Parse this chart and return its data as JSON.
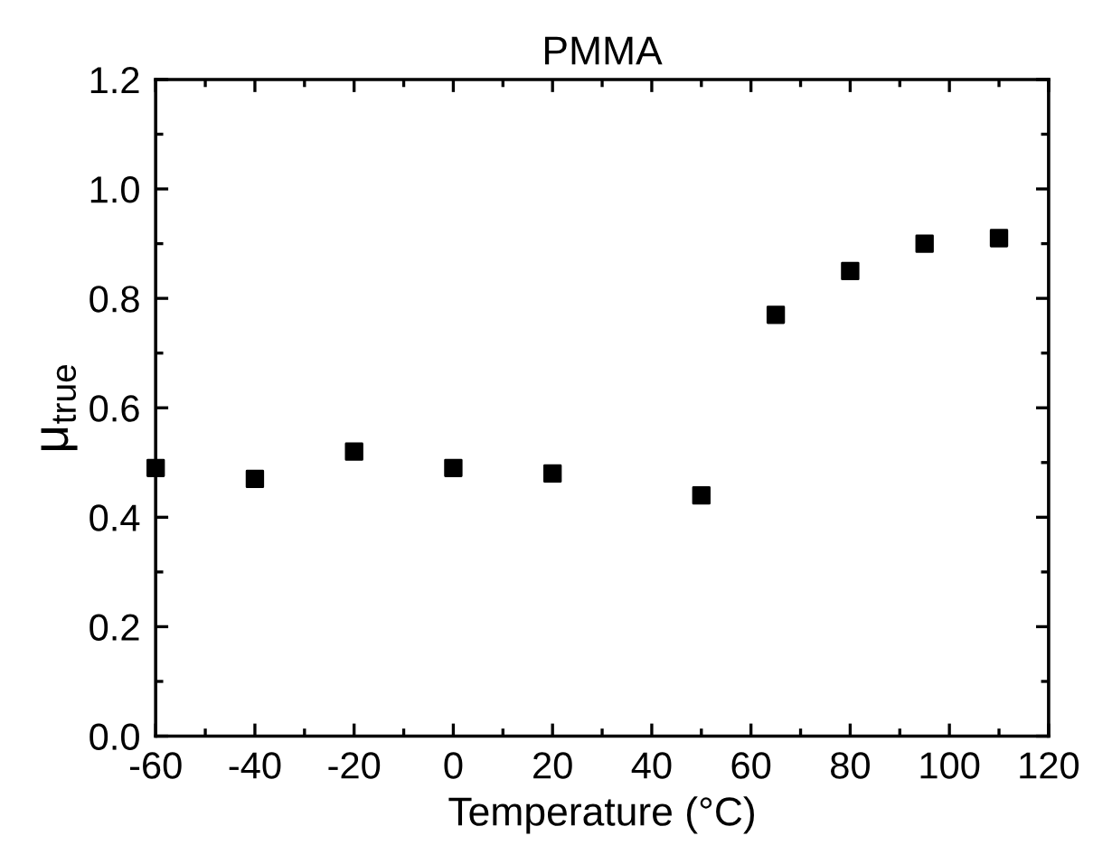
{
  "chart_data": {
    "type": "scatter",
    "title": "PMMA",
    "xlabel": "Temperature (°C)",
    "ylabel": "μ$_{true}$",
    "x": [
      -60,
      -40,
      -20,
      0,
      20,
      50,
      65,
      80,
      95,
      110
    ],
    "series": [
      {
        "color": "#000000",
        "values": [
          0.49,
          0.47,
          0.52,
          0.49,
          0.48,
          0.44,
          0.77,
          0.85,
          0.9,
          0.91
        ]
      }
    ],
    "marker": "square",
    "grid": false,
    "xlim": [
      -60,
      120
    ],
    "xticks": [
      -60,
      -40,
      -20,
      0,
      20,
      40,
      60,
      80,
      100,
      120
    ],
    "ylim": [
      0.0,
      1.2
    ],
    "yticks": [
      {
        "value": 0.0,
        "label": "0.0"
      },
      {
        "value": 0.2,
        "label": "0.2"
      },
      {
        "value": 0.4,
        "label": "0.4"
      },
      {
        "value": 0.6,
        "label": "0.6"
      },
      {
        "value": 0.8,
        "label": "0.8"
      },
      {
        "value": 1.0,
        "label": "1.0"
      },
      {
        "value": 1.2,
        "label": "1.2"
      }
    ]
  }
}
